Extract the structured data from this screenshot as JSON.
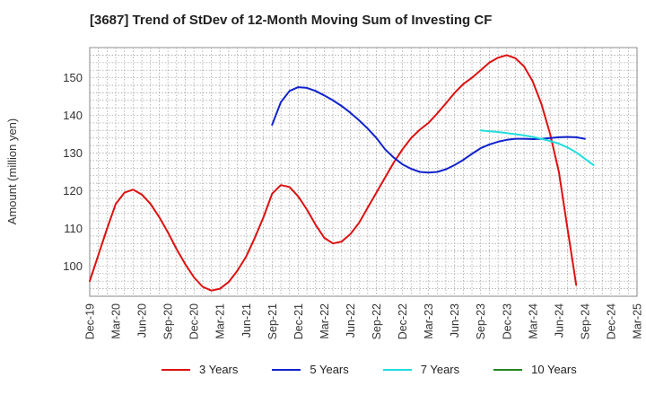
{
  "chart_data": {
    "type": "line",
    "title": "[3687]  Trend of StDev of 12-Month Moving Sum of Investing CF",
    "ylabel": "Amount (million yen)",
    "xlabel": "",
    "ylim": [
      92,
      158
    ],
    "yticks": [
      100,
      110,
      120,
      130,
      140,
      150
    ],
    "x_tick_labels": [
      "Dec-19",
      "Mar-20",
      "Jun-20",
      "Sep-20",
      "Dec-20",
      "Mar-21",
      "Jun-21",
      "Sep-21",
      "Dec-21",
      "Mar-22",
      "Jun-22",
      "Sep-22",
      "Dec-22",
      "Mar-23",
      "Jun-23",
      "Sep-23",
      "Dec-23",
      "Mar-24",
      "Jun-24",
      "Sep-24",
      "Dec-24",
      "Mar-25"
    ],
    "x_start": "Dec-19",
    "grid": true,
    "legend_position": "bottom",
    "series": [
      {
        "name": "3 Years",
        "color": "#dd1111",
        "start": "Dec-19",
        "values": [
          96,
          103,
          110,
          116.5,
          119.5,
          120.3,
          119,
          116.5,
          113,
          109,
          104.5,
          100.5,
          97,
          94.5,
          93.5,
          94,
          95.8,
          98.8,
          102.5,
          107.5,
          113,
          119.2,
          121.5,
          121,
          118.5,
          115,
          111,
          107.5,
          106,
          106.5,
          108.5,
          111.5,
          115.5,
          119.5,
          123.5,
          127.5,
          131,
          134,
          136.2,
          138,
          140.5,
          143.2,
          146,
          148.3,
          150,
          152,
          154,
          155.3,
          156,
          155.2,
          153,
          149,
          143,
          135,
          125,
          110,
          95
        ]
      },
      {
        "name": "5 Years",
        "color": "#1122cc",
        "start": "Sep-21",
        "values": [
          137.5,
          143.5,
          146.5,
          147.5,
          147.3,
          146.5,
          145.3,
          144,
          142.5,
          140.7,
          138.7,
          136.5,
          134,
          131,
          128.8,
          127,
          125.8,
          125,
          124.8,
          125,
          125.7,
          126.8,
          128.2,
          129.8,
          131.3,
          132.3,
          133,
          133.5,
          133.8,
          133.8,
          133.7,
          133.8,
          134,
          134.2,
          134.3,
          134.2,
          133.8
        ]
      },
      {
        "name": "7 Years",
        "color": "#22dddd",
        "start": "Sep-23",
        "values": [
          136,
          135.8,
          135.6,
          135.3,
          135,
          134.7,
          134.3,
          133.8,
          133.2,
          132.5,
          131.5,
          130.2,
          128.5,
          126.8
        ]
      },
      {
        "name": "10 Years",
        "color": "#228822",
        "start": "Sep-24",
        "values": []
      }
    ]
  }
}
